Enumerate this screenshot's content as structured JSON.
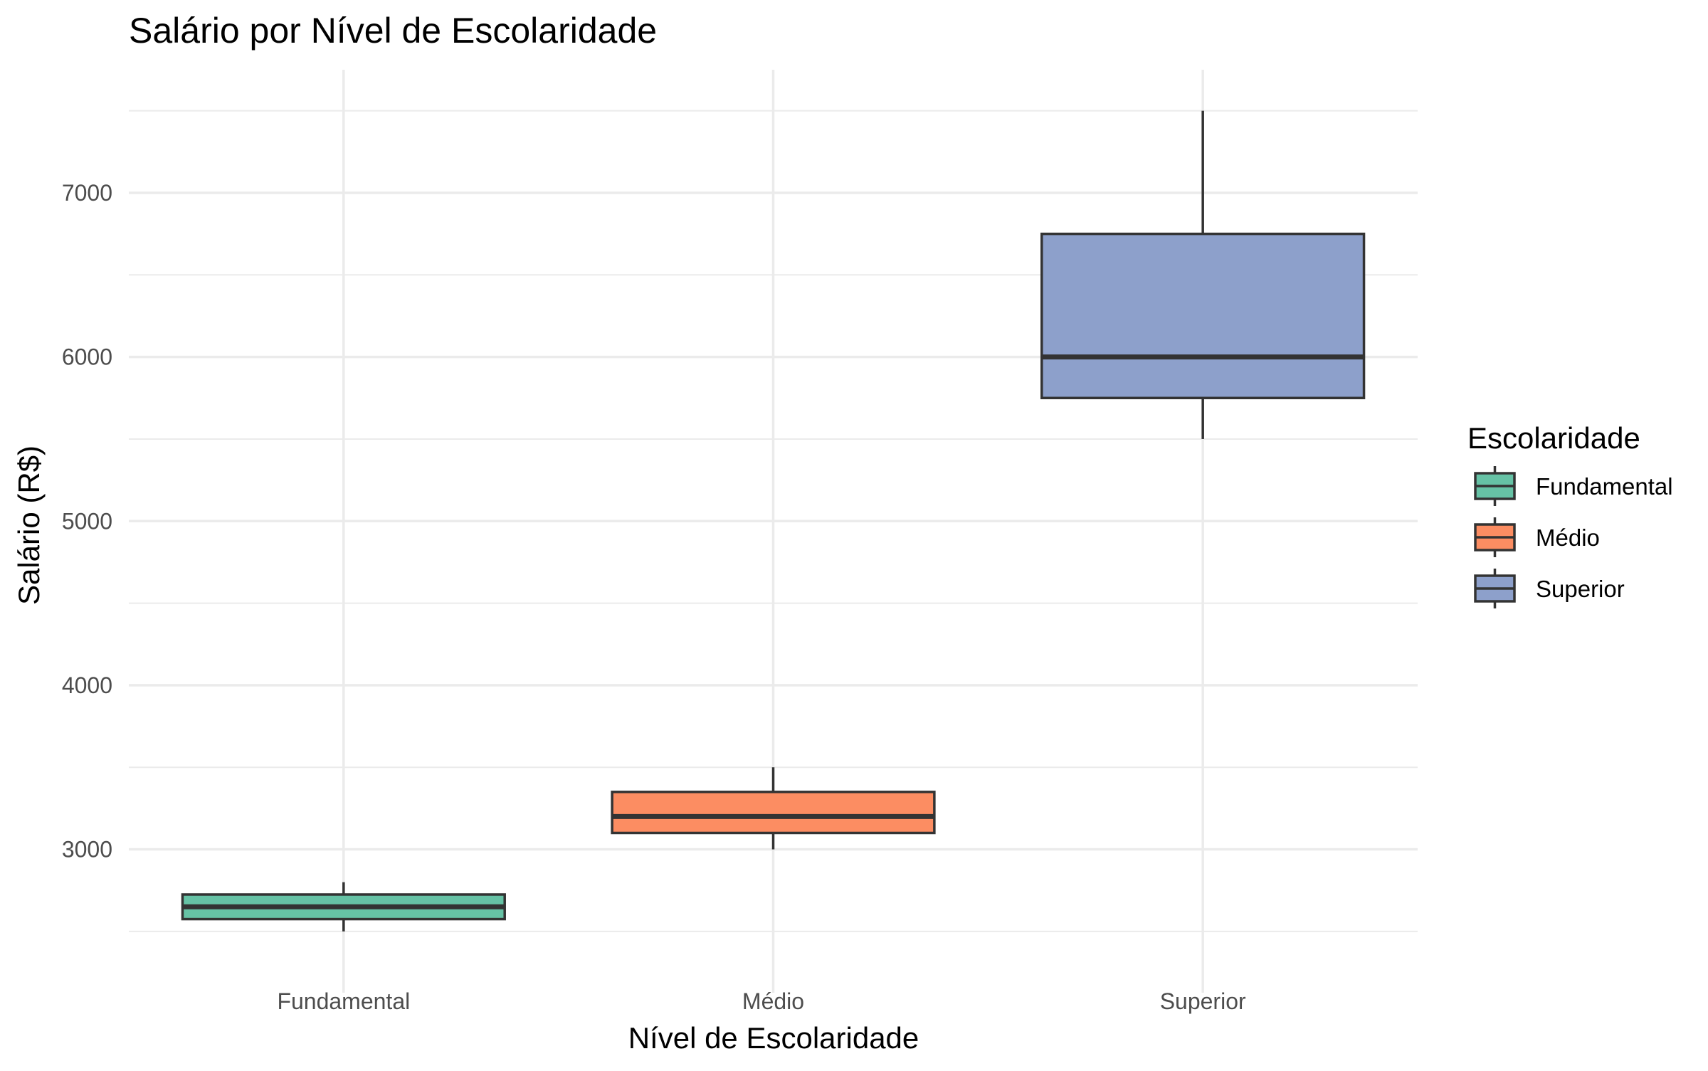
{
  "chart_data": {
    "type": "box",
    "title": "Salário por Nível de Escolaridade",
    "xlabel": "Nível de Escolaridade",
    "ylabel": "Salário (R$)",
    "ylim": [
      2300,
      7750
    ],
    "yticks": [
      3000,
      4000,
      5000,
      6000,
      7000
    ],
    "categories": [
      "Fundamental",
      "Médio",
      "Superior"
    ],
    "boxes": [
      {
        "category": "Fundamental",
        "min": 2500,
        "q1": 2575,
        "median": 2650,
        "q3": 2725,
        "max": 2800,
        "color": "#66c2a5"
      },
      {
        "category": "Médio",
        "min": 3000,
        "q1": 3100,
        "median": 3200,
        "q3": 3350,
        "max": 3500,
        "color": "#fc8d62"
      },
      {
        "category": "Superior",
        "min": 5500,
        "q1": 5750,
        "median": 6000,
        "q3": 6750,
        "max": 7500,
        "color": "#8da0cb"
      }
    ],
    "grid": true,
    "legend": {
      "title": "Escolaridade",
      "position": "right",
      "items": [
        {
          "label": "Fundamental",
          "color": "#66c2a5"
        },
        {
          "label": "Médio",
          "color": "#fc8d62"
        },
        {
          "label": "Superior",
          "color": "#8da0cb"
        }
      ]
    }
  }
}
